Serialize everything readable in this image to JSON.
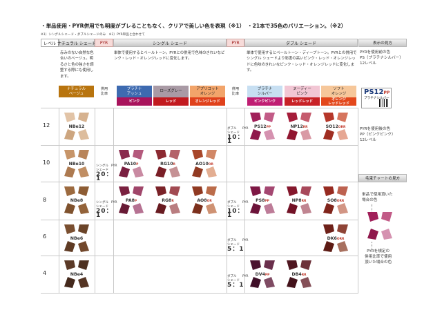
{
  "headlines": {
    "left": "・単品使用・PYR併用でも明度がブレることもなく、クリアで美しい色を表現（※1）",
    "right": "・21本で35色のバリエーション。（※2）"
  },
  "note": "※1）シングルシェード・ダブルシェードのみ　※2）PYR単品と合わせて",
  "header_bands": {
    "level": "レベル",
    "natural": "ナチュラル シェード",
    "pyr1": "PYR",
    "single": "シングル シェード",
    "pyr2": "PYR",
    "double": "ダブル シェード",
    "how_to_read": "表示の見方"
  },
  "descriptions": {
    "natural": "赤みのない自然な色合いのベージュ。明るさと色の強さを調整する際にも使用します。",
    "single": "単体で使用するとペールトーン。PYRとの併用で色味のきれいなピンク・レッド・オレンジレッドに変化します。",
    "double": "単体で使用するとペールトーン・ディープトーン。PYRとの併用でシングル シェードより彩度の高いピンク・レッド・オレンジレッドに色味のきれいなピンク・レッド・オレンジレッドに変化します。"
  },
  "ratio_headers": {
    "single": "併用\n比率",
    "double": "併用\n比率"
  },
  "chips": [
    {
      "top": "ナチュラル\nベージュ",
      "bottom": "",
      "top_color": "#b8740e",
      "top_text": "#fff",
      "bottom_color": "#ffffff"
    },
    {
      "top": "プラチナ\nアッシュ",
      "bottom": "ピンク",
      "top_color": "#3d6ab0",
      "top_text": "#fff",
      "bottom_color": "#a8135c"
    },
    {
      "top": "ローズグレー",
      "bottom": "レッド",
      "top_color": "#a99aa5",
      "top_text": "#222",
      "bottom_color": "#c21a1f"
    },
    {
      "top": "アプリコット\nオレンジ",
      "bottom": "オレンジレッド",
      "top_color": "#f2a46a",
      "top_text": "#222",
      "bottom_color": "#e0411b"
    },
    {
      "top": "プラチナ\nシルバー",
      "bottom": "ピンクピンク",
      "top_color": "#c7dff2",
      "top_text": "#222",
      "bottom_color": "#c01e73"
    },
    {
      "top": "ヌーディー\nピンク",
      "bottom": "レッドレッド",
      "top_color": "#f2c6d4",
      "top_text": "#222",
      "bottom_color": "#c82126"
    },
    {
      "top": "ソフト\nオレンジ",
      "bottom": "オレンジ\nレッドレッド",
      "top_color": "#f6c79a",
      "top_text": "#222",
      "bottom_color": "#e3471b"
    }
  ],
  "levels": [
    "12",
    "10",
    "8",
    "6",
    "4"
  ],
  "swatches": [
    {
      "name": "NBe12",
      "suffix": "",
      "row": 0,
      "col": 0,
      "colors": [
        "#e2c4a7",
        "#d6b28f",
        "#cda680",
        "#ddbd9d"
      ]
    },
    {
      "name": "NBe10",
      "suffix": "",
      "row": 1,
      "col": 0,
      "colors": [
        "#c79569",
        "#b9855a",
        "#ad7a50",
        "#c08e63"
      ]
    },
    {
      "name": "NBe8",
      "suffix": "",
      "row": 2,
      "col": 0,
      "colors": [
        "#9c6a3f",
        "#8d5c34",
        "#7f522e",
        "#93633a"
      ]
    },
    {
      "name": "NBe6",
      "suffix": "",
      "row": 3,
      "col": 0,
      "colors": [
        "#7a4f30",
        "#6b4429",
        "#5f3b24",
        "#72482c"
      ]
    },
    {
      "name": "NBe4",
      "suffix": "",
      "row": 4,
      "col": 0,
      "colors": [
        "#5b3a27",
        "#4e3121",
        "#44291c",
        "#553524"
      ]
    },
    {
      "name": "PA10",
      "suffix": "P",
      "row": 1,
      "col": 1,
      "colors": [
        "#8a2b4e",
        "#b45a7d",
        "#7a1f40",
        "#c98aa2"
      ]
    },
    {
      "name": "RG10",
      "suffix": "R",
      "row": 1,
      "col": 2,
      "colors": [
        "#8c2a32",
        "#b4636a",
        "#7a1f27",
        "#c59194"
      ]
    },
    {
      "name": "AO10",
      "suffix": "OR",
      "row": 1,
      "col": 3,
      "colors": [
        "#a8472a",
        "#d18766",
        "#923a22",
        "#e3ae92"
      ]
    },
    {
      "name": "PA8",
      "suffix": "P",
      "row": 2,
      "col": 1,
      "colors": [
        "#7a2140",
        "#a0466a",
        "#681a35",
        "#b67292"
      ]
    },
    {
      "name": "RG8",
      "suffix": "R",
      "row": 2,
      "col": 2,
      "colors": [
        "#7a2228",
        "#a24b52",
        "#681b21",
        "#b97d80"
      ]
    },
    {
      "name": "AO8",
      "suffix": "OR",
      "row": 2,
      "col": 3,
      "colors": [
        "#903a22",
        "#bb6c4a",
        "#7c301c",
        "#cf9273"
      ]
    },
    {
      "name": "PS12",
      "suffix": "PP",
      "row": 0,
      "col": 4,
      "colors": [
        "#a1205a",
        "#c25b87",
        "#8f184c",
        "#d592b0"
      ]
    },
    {
      "name": "NP12",
      "suffix": "RR",
      "row": 0,
      "col": 5,
      "colors": [
        "#a51d3a",
        "#c55b6d",
        "#911630",
        "#d99aa5"
      ]
    },
    {
      "name": "SO12",
      "suffix": "ORR",
      "row": 0,
      "col": 6,
      "colors": [
        "#b6372a",
        "#d6755e",
        "#a02e22",
        "#e6a793"
      ]
    },
    {
      "name": "PS8",
      "suffix": "PP",
      "row": 2,
      "col": 4,
      "colors": [
        "#7e1845",
        "#a44771",
        "#6c133a",
        "#bd7c98"
      ]
    },
    {
      "name": "NP8",
      "suffix": "RR",
      "row": 2,
      "col": 5,
      "colors": [
        "#84172c",
        "#a8495b",
        "#721226",
        "#c08591"
      ]
    },
    {
      "name": "SO8",
      "suffix": "ORR",
      "row": 2,
      "col": 6,
      "colors": [
        "#962b21",
        "#bd6250",
        "#80241b",
        "#d29584"
      ]
    },
    {
      "name": "DK6",
      "suffix": "ORR",
      "row": 3,
      "col": 6,
      "colors": [
        "#6e2119",
        "#8f4436",
        "#5d1b14",
        "#a8705f"
      ]
    },
    {
      "name": "DV4",
      "suffix": "PP",
      "row": 4,
      "col": 4,
      "colors": [
        "#4b1330",
        "#6a2f4c",
        "#3f0f28",
        "#7f4b63"
      ]
    },
    {
      "name": "DB4",
      "suffix": "RR",
      "row": 4,
      "col": 5,
      "colors": [
        "#4f1620",
        "#6e323a",
        "#43121b",
        "#855058"
      ]
    }
  ],
  "ratios": [
    {
      "row": 1,
      "kind": "single",
      "label": "シングル\nシェード",
      "pyr": "PYR",
      "value": "20：1"
    },
    {
      "row": 2,
      "kind": "single",
      "label": "シングル\nシェード",
      "pyr": "PYR",
      "value": "20：1"
    },
    {
      "row": 0,
      "kind": "double",
      "label": "ダブル\nシェード",
      "pyr": "PYR",
      "value": "10：1"
    },
    {
      "row": 2,
      "kind": "double",
      "label": "ダブル\nシェード",
      "pyr": "PYR",
      "value": "10：1"
    },
    {
      "row": 3,
      "kind": "double",
      "label": "ダブル\nシェード",
      "pyr": "PYR",
      "value": "5：1"
    },
    {
      "row": 4,
      "kind": "double",
      "label": "ダブル\nシェード",
      "pyr": "PYR",
      "value": "5：1"
    }
  ],
  "side_panel": {
    "title1": "表示の見方",
    "line1": "PYRを使用前の色\nPS（プラチナシルバー）\n12レベル",
    "badge": "PS12",
    "badge_suffix": "PP",
    "badge_sub": "プラチナシルバー",
    "line2": "PYRを使用後の色\nPP（ピンクピンク）\n12レベル",
    "title2": "毛束チャートの見方",
    "line3": "単品で使用頂いた\n場合の色",
    "line4": "PYRを規定の\n併用比率で使用\n頂いた場合の色",
    "chart_colors": [
      "#a1205a",
      "#c25b87",
      "#8f184c",
      "#d592b0"
    ]
  }
}
